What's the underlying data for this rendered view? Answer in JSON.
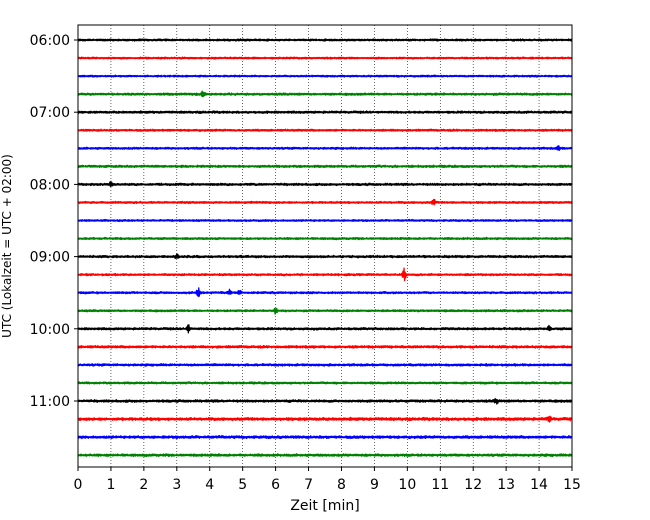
{
  "chart_data": {
    "type": "line",
    "title": "",
    "xlabel": "Zeit  [min]",
    "ylabel": "UTC (Lokalzeit = UTC + 02:00)",
    "xlim": [
      0,
      15
    ],
    "x_ticks": [
      0,
      1,
      2,
      3,
      4,
      5,
      6,
      7,
      8,
      9,
      10,
      11,
      12,
      13,
      14,
      15
    ],
    "x_tick_labels": [
      "0",
      "1",
      "2",
      "3",
      "4",
      "5",
      "6",
      "7",
      "8",
      "9",
      "10",
      "11",
      "12",
      "13",
      "14",
      "15"
    ],
    "y_tick_labels": [
      "06:00",
      "07:00",
      "08:00",
      "09:00",
      "10:00",
      "11:00"
    ],
    "y_tick_trace_index": [
      0,
      4,
      8,
      12,
      16,
      20
    ],
    "grid": "vertical dotted",
    "trace_interval_minutes": 15,
    "colors_cycle": [
      "#000000",
      "#ff0000",
      "#0000ff",
      "#008000"
    ],
    "traces": [
      {
        "start": "06:00",
        "color": "#000000",
        "amplitude": 0.18,
        "events": []
      },
      {
        "start": "06:15",
        "color": "#ff0000",
        "amplitude": 0.16,
        "events": []
      },
      {
        "start": "06:30",
        "color": "#0000ff",
        "amplitude": 0.16,
        "events": []
      },
      {
        "start": "06:45",
        "color": "#008000",
        "amplitude": 0.2,
        "events": [
          {
            "t": 3.8,
            "amp": 0.7
          }
        ]
      },
      {
        "start": "07:00",
        "color": "#000000",
        "amplitude": 0.2,
        "events": []
      },
      {
        "start": "07:15",
        "color": "#ff0000",
        "amplitude": 0.18,
        "events": []
      },
      {
        "start": "07:30",
        "color": "#0000ff",
        "amplitude": 0.18,
        "events": [
          {
            "t": 14.6,
            "amp": 0.5
          }
        ]
      },
      {
        "start": "07:45",
        "color": "#008000",
        "amplitude": 0.2,
        "events": []
      },
      {
        "start": "08:00",
        "color": "#000000",
        "amplitude": 0.2,
        "events": [
          {
            "t": 1.0,
            "amp": 0.6
          }
        ]
      },
      {
        "start": "08:15",
        "color": "#ff0000",
        "amplitude": 0.18,
        "events": [
          {
            "t": 10.8,
            "amp": 0.7
          }
        ]
      },
      {
        "start": "08:30",
        "color": "#0000ff",
        "amplitude": 0.16,
        "events": []
      },
      {
        "start": "08:45",
        "color": "#008000",
        "amplitude": 0.18,
        "events": []
      },
      {
        "start": "09:00",
        "color": "#000000",
        "amplitude": 0.2,
        "events": [
          {
            "t": 3.0,
            "amp": 0.6
          }
        ]
      },
      {
        "start": "09:15",
        "color": "#ff0000",
        "amplitude": 0.18,
        "events": [
          {
            "t": 9.9,
            "amp": 1.4
          }
        ]
      },
      {
        "start": "09:30",
        "color": "#0000ff",
        "amplitude": 0.18,
        "events": [
          {
            "t": 3.65,
            "amp": 1.0
          },
          {
            "t": 4.6,
            "amp": 0.5
          },
          {
            "t": 4.9,
            "amp": 0.5
          }
        ]
      },
      {
        "start": "09:45",
        "color": "#008000",
        "amplitude": 0.18,
        "events": [
          {
            "t": 6.0,
            "amp": 0.6
          }
        ]
      },
      {
        "start": "10:00",
        "color": "#000000",
        "amplitude": 0.2,
        "events": [
          {
            "t": 3.35,
            "amp": 0.8
          },
          {
            "t": 14.3,
            "amp": 0.5
          }
        ]
      },
      {
        "start": "10:15",
        "color": "#ff0000",
        "amplitude": 0.22,
        "events": []
      },
      {
        "start": "10:30",
        "color": "#0000ff",
        "amplitude": 0.2,
        "events": []
      },
      {
        "start": "10:45",
        "color": "#008000",
        "amplitude": 0.18,
        "events": []
      },
      {
        "start": "11:00",
        "color": "#000000",
        "amplitude": 0.22,
        "events": [
          {
            "t": 12.7,
            "amp": 0.6
          }
        ]
      },
      {
        "start": "11:15",
        "color": "#ff0000",
        "amplitude": 0.26,
        "events": [
          {
            "t": 14.3,
            "amp": 0.6
          }
        ]
      },
      {
        "start": "11:30",
        "color": "#0000ff",
        "amplitude": 0.24,
        "events": []
      },
      {
        "start": "11:45",
        "color": "#008000",
        "amplitude": 0.22,
        "events": []
      }
    ]
  }
}
